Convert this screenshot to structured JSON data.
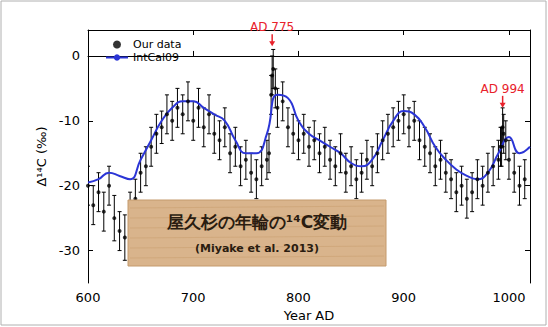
{
  "chart_data": {
    "type": "scatter",
    "x_label": "Year AD",
    "y_label": "Δ¹⁴C (‰)",
    "xlim": [
      600,
      1020
    ],
    "xticks": [
      600,
      700,
      800,
      900,
      1000
    ],
    "ylim": [
      -35,
      4
    ],
    "yticks": [
      -30,
      -20,
      -10,
      0
    ],
    "grid": false,
    "legend": "upper left",
    "series": [
      {
        "name": "Our data",
        "type": "scatter",
        "marker": "circle",
        "color": "#000000",
        "x": [
          600,
          605,
          610,
          615,
          620,
          625,
          630,
          635,
          640,
          645,
          650,
          655,
          660,
          665,
          670,
          675,
          680,
          685,
          690,
          695,
          700,
          705,
          710,
          715,
          720,
          725,
          730,
          735,
          740,
          745,
          750,
          755,
          760,
          765,
          770,
          772,
          774,
          775,
          776,
          778,
          780,
          785,
          790,
          795,
          800,
          805,
          810,
          815,
          820,
          825,
          830,
          835,
          840,
          845,
          850,
          855,
          860,
          865,
          870,
          875,
          880,
          885,
          890,
          895,
          900,
          905,
          910,
          915,
          920,
          925,
          930,
          935,
          940,
          945,
          950,
          955,
          960,
          965,
          970,
          975,
          980,
          985,
          990,
          992,
          993,
          994,
          995,
          997,
          1000,
          1005,
          1010,
          1015
        ],
        "values": [
          -20,
          -23,
          -21,
          -24,
          -20,
          -25,
          -27,
          -28,
          -24,
          -22,
          -18,
          -17,
          -14,
          -12,
          -11,
          -9,
          -10,
          -8,
          -9,
          -7,
          -10,
          -8,
          -11,
          -9,
          -12,
          -13,
          -11,
          -15,
          -14,
          -17,
          -16,
          -18,
          -19,
          -17,
          -16,
          -15,
          -6,
          -3,
          -2,
          -5,
          -8,
          -7,
          -11,
          -12,
          -13,
          -12,
          -14,
          -13,
          -15,
          -14,
          -16,
          -17,
          -15,
          -18,
          -17,
          -19,
          -18,
          -16,
          -17,
          -15,
          -13,
          -12,
          -11,
          -10,
          -9,
          -11,
          -10,
          -13,
          -14,
          -15,
          -17,
          -16,
          -18,
          -19,
          -21,
          -20,
          -22,
          -21,
          -19,
          -20,
          -18,
          -17,
          -16,
          -14,
          -14,
          -11,
          -12,
          -13,
          -16,
          -18,
          -20,
          -19
        ],
        "errors": [
          3,
          3,
          3,
          3,
          3,
          3.5,
          3,
          3.5,
          3,
          3,
          3,
          3,
          3,
          3,
          2.5,
          3,
          3,
          3,
          3,
          3,
          3,
          3,
          3,
          3,
          3,
          3,
          3,
          3,
          3,
          3,
          3,
          3,
          3,
          3,
          3,
          3,
          3,
          3,
          3,
          3,
          3,
          3,
          3,
          3,
          3,
          3,
          3,
          3,
          3,
          3,
          3,
          3,
          3,
          3,
          3,
          3,
          3,
          3,
          3,
          3,
          3,
          3,
          3,
          3,
          3,
          3,
          3,
          3,
          3,
          3,
          3,
          3,
          3,
          3,
          3,
          3,
          3,
          3,
          3,
          3,
          3,
          3,
          3,
          3,
          3,
          3,
          3,
          3,
          3,
          3,
          3,
          3
        ]
      },
      {
        "name": "IntCal09",
        "type": "line",
        "line_style": "solid",
        "color": "#2b35d6",
        "x": [
          600,
          610,
          620,
          630,
          640,
          650,
          660,
          670,
          680,
          690,
          700,
          710,
          720,
          730,
          740,
          750,
          760,
          770,
          780,
          790,
          800,
          810,
          820,
          830,
          840,
          850,
          860,
          870,
          880,
          890,
          900,
          910,
          920,
          930,
          940,
          950,
          960,
          970,
          980,
          990,
          1000,
          1010,
          1020
        ],
        "values": [
          -19.5,
          -19,
          -18,
          -18.5,
          -19,
          -16,
          -13,
          -10,
          -8,
          -7,
          -7,
          -8,
          -9,
          -10,
          -13,
          -15,
          -15,
          -12,
          -6,
          -6.5,
          -10,
          -12,
          -13,
          -14,
          -15,
          -16.5,
          -17,
          -16,
          -13,
          -10,
          -8.5,
          -9,
          -11,
          -14,
          -16,
          -17.5,
          -18.5,
          -19,
          -18,
          -15,
          -12.5,
          -15,
          -14
        ]
      }
    ],
    "annotations": [
      {
        "text": "AD 775",
        "x": 775,
        "y": 1.5,
        "color": "#e8212b"
      },
      {
        "text": "AD 994",
        "x": 994,
        "y": -8,
        "color": "#e8212b"
      }
    ],
    "label_box": {
      "text": "屋久杉の年輪の¹⁴C変動",
      "subtext": "(Miyake et al. 2013)"
    }
  }
}
